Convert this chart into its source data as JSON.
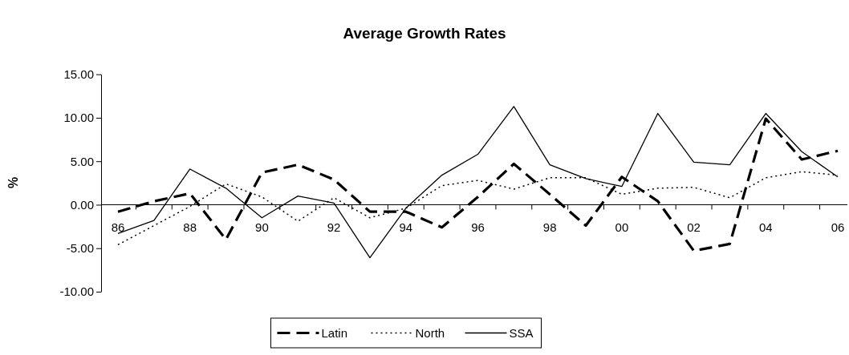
{
  "chart_data": {
    "type": "line",
    "title": "Average Growth Rates",
    "ylabel": "%",
    "categories": [
      "86",
      null,
      "88",
      null,
      "90",
      null,
      "92",
      null,
      "94",
      null,
      "96",
      null,
      "98",
      null,
      "00",
      null,
      "02",
      null,
      "04",
      null,
      "06"
    ],
    "ylim": [
      -10,
      15
    ],
    "yticks": [
      {
        "value": -10,
        "label": "-10.00"
      },
      {
        "value": -5,
        "label": "-5.00"
      },
      {
        "value": 0,
        "label": "0.00"
      },
      {
        "value": 5,
        "label": "5.00"
      },
      {
        "value": 10,
        "label": "10.00"
      },
      {
        "value": 15,
        "label": "15.00"
      }
    ],
    "grid": false,
    "legend": "bottom",
    "marker": "none",
    "series": [
      {
        "name": "Latin",
        "color": "#000000",
        "line_style": "dashed",
        "values": [
          -0.8,
          0.4,
          1.3,
          -4.0,
          3.7,
          4.6,
          2.9,
          -0.8,
          -0.8,
          -2.6,
          0.9,
          4.7,
          1.2,
          -2.4,
          3.2,
          0.4,
          -5.3,
          -4.5,
          9.9,
          5.2,
          6.2
        ]
      },
      {
        "name": "North",
        "color": "#000000",
        "line_style": "dotted",
        "values": [
          -4.6,
          -2.4,
          -0.2,
          2.4,
          0.9,
          -1.9,
          0.8,
          -1.5,
          -0.4,
          2.2,
          2.8,
          1.8,
          3.1,
          3.1,
          1.2,
          1.9,
          2.0,
          0.8,
          3.1,
          3.8,
          3.4
        ]
      },
      {
        "name": "SSA",
        "color": "#000000",
        "line_style": "solid",
        "values": [
          -3.3,
          -1.8,
          4.1,
          1.9,
          -1.5,
          1.0,
          0.2,
          -6.1,
          -0.4,
          3.4,
          5.8,
          11.3,
          4.6,
          3.0,
          2.1,
          10.5,
          4.9,
          4.6,
          10.5,
          6.1,
          3.2
        ]
      }
    ]
  }
}
